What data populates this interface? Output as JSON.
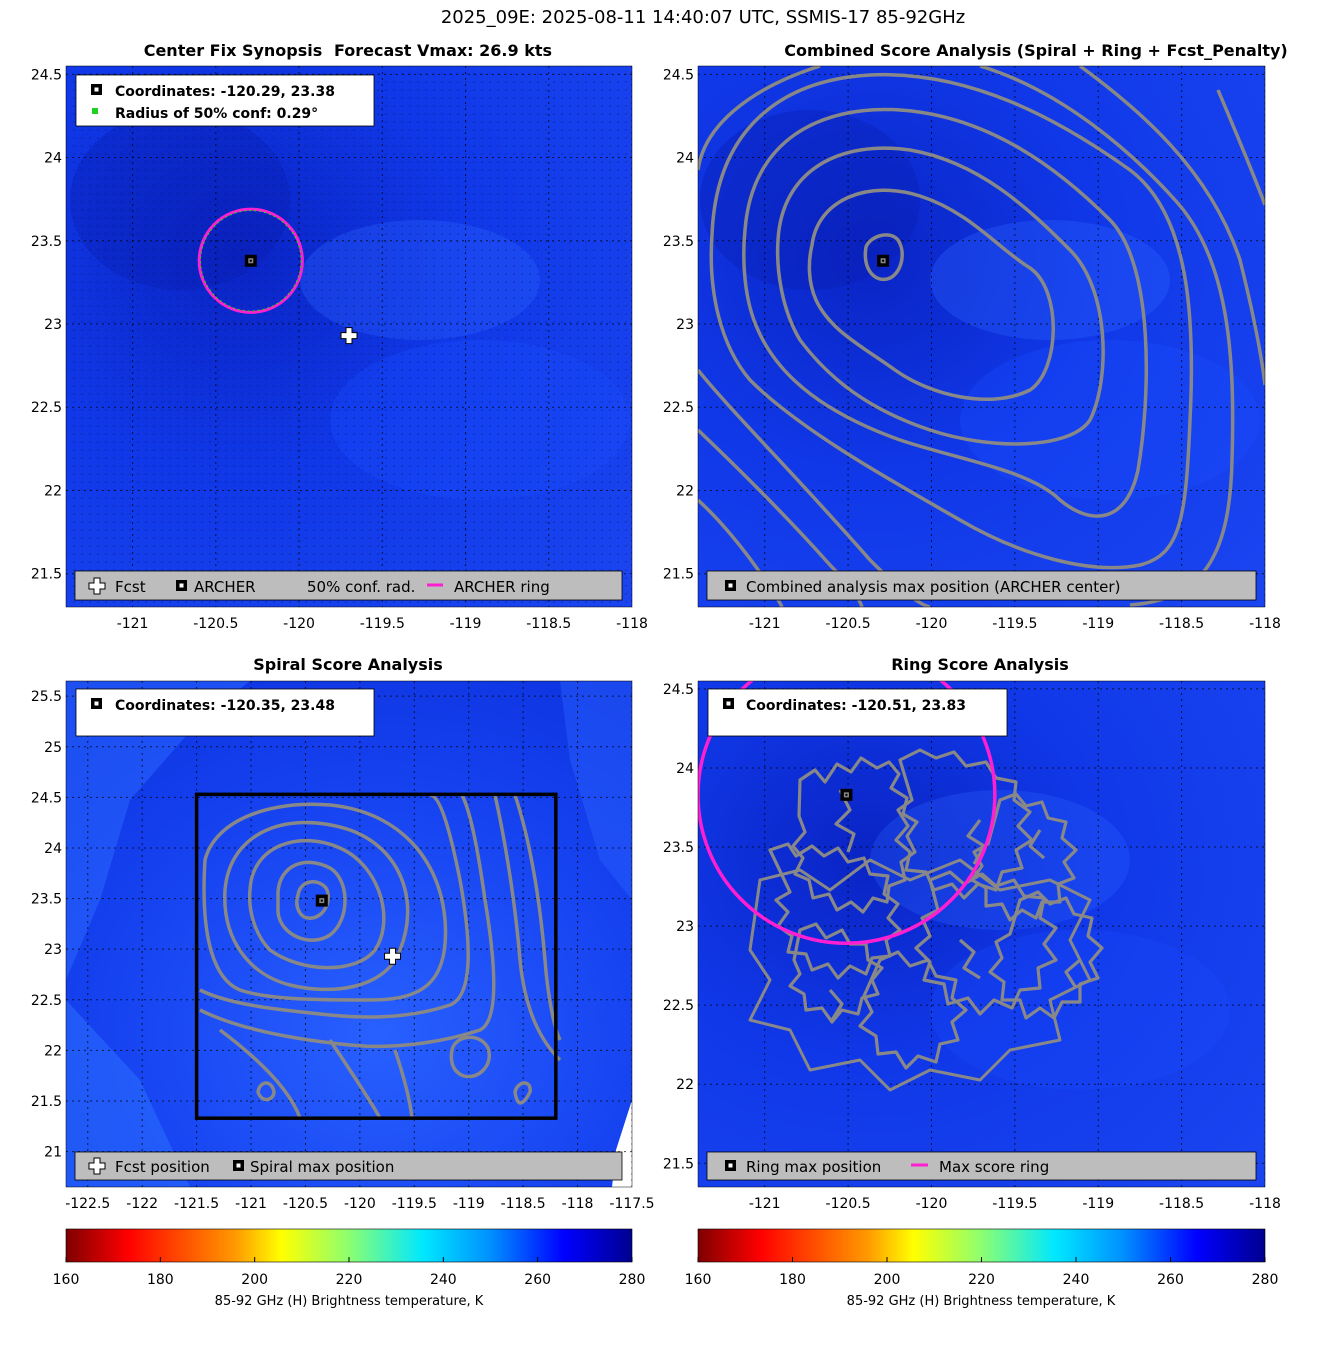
{
  "figure": {
    "suptitle": "2025_09E: 2025-08-11 14:40:07 UTC, SSMIS-17 85-92GHz"
  },
  "colors": {
    "field_base": "#1038e8",
    "field_dark": "#0820b8",
    "field_light": "#2a62ff",
    "contour": "#888888",
    "ring": "#ff1fd2",
    "conf_dot": "#1fd21f",
    "legend_bg": "#bdbdbd",
    "grid": "#000000"
  },
  "panels": {
    "synopsis": {
      "title_left": "Center Fix Synopsis",
      "title_right": "Forecast Vmax: 26.9 kts",
      "coords_text": "Coordinates: -120.29, 23.38",
      "radius_text": "Radius of 50% conf: 0.29°",
      "legend": [
        "Fcst",
        "ARCHER",
        "50% conf. rad.",
        "ARCHER ring"
      ]
    },
    "combined": {
      "title": "Combined Score Analysis (Spiral + Ring + Fcst_Penalty)",
      "legend": [
        "Combined analysis max position (ARCHER center)"
      ]
    },
    "spiral": {
      "title": "Spiral Score Analysis",
      "coords_text": "Coordinates: -120.35, 23.48",
      "legend": [
        "Fcst position",
        "Spiral max position"
      ]
    },
    "ring": {
      "title": "Ring Score Analysis",
      "coords_text": "Coordinates: -120.51, 23.83",
      "legend": [
        "Ring max position",
        "Max score ring"
      ]
    }
  },
  "colorbars": {
    "label": "85-92 GHz (H) Brightness temperature, K",
    "ticks": [
      "160",
      "180",
      "200",
      "220",
      "240",
      "260",
      "280"
    ],
    "range": [
      160,
      280
    ]
  },
  "chart_data": [
    {
      "id": "synopsis",
      "type": "heatmap",
      "title": "Center Fix Synopsis     Forecast Vmax: 26.9 kts",
      "xlim": [
        -121.4,
        -118
      ],
      "ylim": [
        21.3,
        24.55
      ],
      "xticks": [
        -121,
        -120.5,
        -120,
        -119.5,
        -119,
        -118.5,
        -118
      ],
      "yticks": [
        21.5,
        22,
        22.5,
        23,
        23.5,
        24,
        24.5
      ],
      "archer_center": {
        "lon": -120.29,
        "lat": 23.38
      },
      "forecast_position": {
        "lon": -119.7,
        "lat": 22.93
      },
      "conf_radius_deg": 0.29,
      "archer_ring_radius_deg": 0.31,
      "brightness_temperature_approx_K": 265
    },
    {
      "id": "combined",
      "type": "heatmap",
      "title": "Combined Score Analysis (Spiral + Ring + Fcst_Penalty)",
      "xlim": [
        -121.4,
        -118
      ],
      "ylim": [
        21.3,
        24.55
      ],
      "xticks": [
        -121,
        -120.5,
        -120,
        -119.5,
        -119,
        -118.5,
        -118
      ],
      "yticks": [
        21.5,
        22,
        22.5,
        23,
        23.5,
        24,
        24.5
      ],
      "max_position": {
        "lon": -120.29,
        "lat": 23.38
      },
      "contour_levels_shown": 8
    },
    {
      "id": "spiral",
      "type": "heatmap",
      "title": "Spiral Score Analysis",
      "xlim": [
        -122.7,
        -117.5
      ],
      "ylim": [
        20.65,
        25.65
      ],
      "xticks": [
        -122.5,
        -122,
        -121.5,
        -121,
        -120.5,
        -120,
        -119.5,
        -119,
        -118.5,
        -118,
        -117.5
      ],
      "yticks": [
        21,
        21.5,
        22,
        22.5,
        23,
        23.5,
        24,
        24.5,
        25,
        25.5
      ],
      "spiral_max_position": {
        "lon": -120.35,
        "lat": 23.48
      },
      "forecast_position": {
        "lon": -119.7,
        "lat": 22.93
      },
      "search_box": {
        "lon": [
          -121.5,
          -118.2
        ],
        "lat": [
          21.33,
          24.53
        ]
      }
    },
    {
      "id": "ring",
      "type": "heatmap",
      "title": "Ring Score Analysis",
      "xlim": [
        -121.4,
        -118
      ],
      "ylim": [
        21.35,
        24.55
      ],
      "xticks": [
        -121,
        -120.5,
        -120,
        -119.5,
        -119,
        -118.5,
        -118
      ],
      "yticks": [
        21.5,
        22,
        22.5,
        23,
        23.5,
        24,
        24.5
      ],
      "ring_max_position": {
        "lon": -120.51,
        "lat": 23.83
      },
      "max_score_ring_radius_deg": 0.89
    }
  ]
}
